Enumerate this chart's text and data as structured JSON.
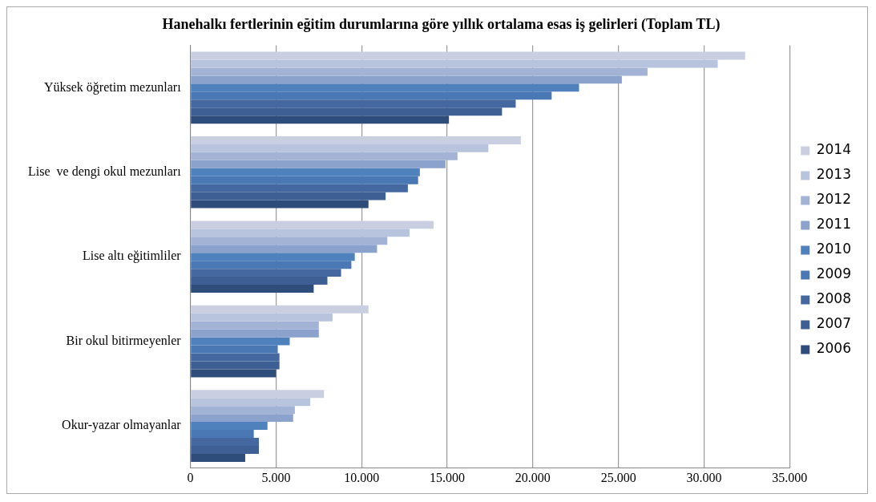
{
  "chart_data": {
    "type": "bar",
    "orientation": "horizontal",
    "title": "Hanehalkı fertlerinin eğitim durumlarına göre yıllık ortalama esas iş gelirleri (Toplam TL)",
    "categories": [
      "Yüksek öğretim mezunları",
      "Lise  ve dengi okul mezunları",
      "Lise altı eğitimliler",
      "Bir okul bitirmeyenler",
      "Okur-yazar olmayanlar"
    ],
    "series": [
      {
        "name": "2014",
        "color": "#c9cfe0",
        "values": [
          32400,
          19300,
          14200,
          10400,
          7800
        ]
      },
      {
        "name": "2013",
        "color": "#b8c4de",
        "values": [
          30800,
          17400,
          12800,
          8300,
          7000
        ]
      },
      {
        "name": "2012",
        "color": "#a2b3d6",
        "values": [
          26700,
          15600,
          11500,
          7500,
          6100
        ]
      },
      {
        "name": "2011",
        "color": "#8aa2cc",
        "values": [
          25200,
          14900,
          10900,
          7500,
          6000
        ]
      },
      {
        "name": "2010",
        "color": "#4f81bd",
        "values": [
          22700,
          13400,
          9600,
          5800,
          4500
        ]
      },
      {
        "name": "2009",
        "color": "#4a78b5",
        "values": [
          21100,
          13300,
          9400,
          5100,
          3700
        ]
      },
      {
        "name": "2008",
        "color": "#44689f",
        "values": [
          19000,
          12700,
          8800,
          5200,
          4000
        ]
      },
      {
        "name": "2007",
        "color": "#3d5f93",
        "values": [
          18200,
          11400,
          8000,
          5200,
          4000
        ]
      },
      {
        "name": "2006",
        "color": "#2f4d7a",
        "values": [
          15100,
          10400,
          7200,
          5000,
          3200
        ]
      }
    ],
    "xlim": [
      0,
      35000
    ],
    "xticks": [
      0,
      {
        "value": 5000,
        "label": "5.000"
      },
      {
        "value": 10000,
        "label": "10.000"
      },
      {
        "value": 15000,
        "label": "15.000"
      },
      {
        "value": 20000,
        "label": "20.000"
      },
      {
        "value": 25000,
        "label": "25.000"
      },
      {
        "value": 30000,
        "label": "30.000"
      },
      {
        "value": 35000,
        "label": "35.000"
      }
    ],
    "grid": "x",
    "legend": "right"
  }
}
